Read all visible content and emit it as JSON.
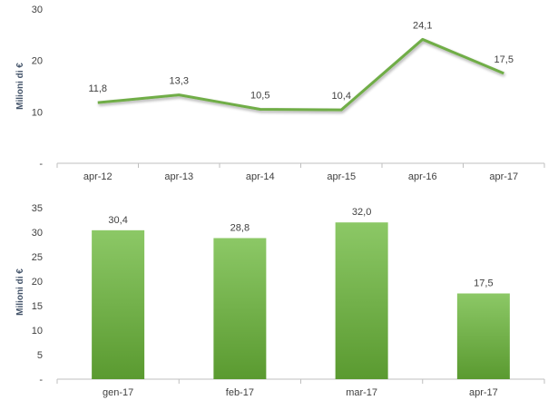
{
  "chart_data": [
    {
      "type": "line",
      "categories": [
        "apr-12",
        "apr-13",
        "apr-14",
        "apr-15",
        "apr-16",
        "apr-17"
      ],
      "values": [
        11.8,
        13.3,
        10.5,
        10.4,
        24.1,
        17.5
      ],
      "value_labels": [
        "11,8",
        "13,3",
        "10,5",
        "10,4",
        "24,1",
        "17,5"
      ],
      "ylabel": "Milioni di €",
      "ylim": [
        0,
        30
      ],
      "yticks": [
        0,
        10,
        20,
        30
      ],
      "ytick_labels": [
        "-",
        "10",
        "20",
        "30"
      ],
      "grid": false,
      "color": "#70ad47"
    },
    {
      "type": "bar",
      "categories": [
        "gen-17",
        "feb-17",
        "mar-17",
        "apr-17"
      ],
      "values": [
        30.4,
        28.8,
        32.0,
        17.5
      ],
      "value_labels": [
        "30,4",
        "28,8",
        "32,0",
        "17,5"
      ],
      "ylabel": "Milioni di €",
      "ylim": [
        0,
        35
      ],
      "yticks": [
        0,
        5,
        10,
        15,
        20,
        25,
        30,
        35
      ],
      "ytick_labels": [
        "-",
        "5",
        "10",
        "15",
        "20",
        "25",
        "30",
        "35"
      ],
      "grid": false,
      "color_top": "#8cc866",
      "color_bottom": "#5a9a30"
    }
  ]
}
